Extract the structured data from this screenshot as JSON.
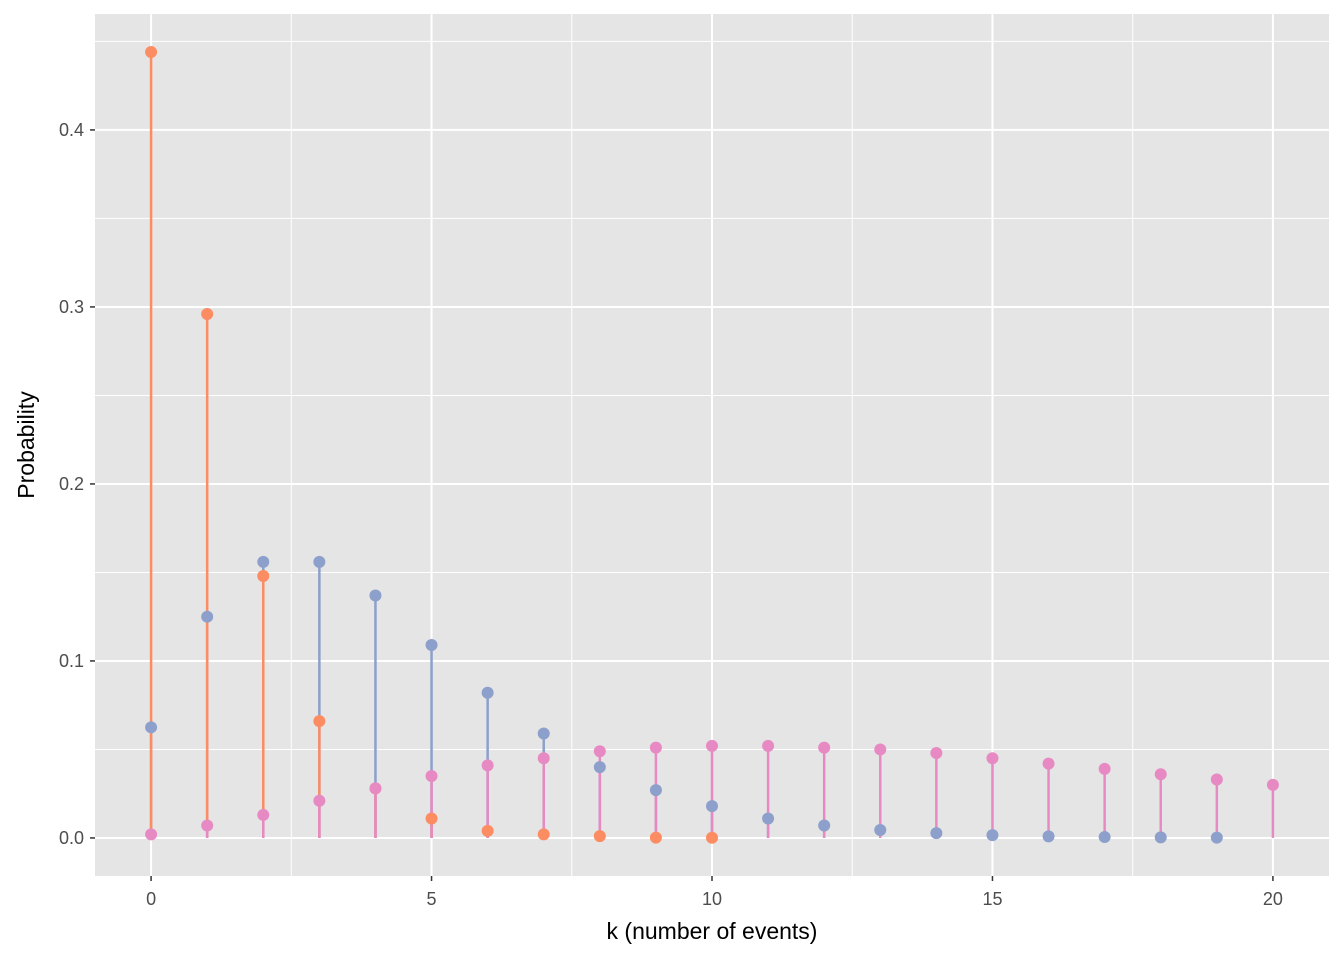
{
  "chart_data": {
    "type": "lollipop",
    "xlabel": "k (number of events)",
    "ylabel": "Probability",
    "xlim": [
      -1,
      21
    ],
    "ylim": [
      -0.0215,
      0.4655
    ],
    "x_ticks": [
      0,
      5,
      10,
      15,
      20
    ],
    "x_tick_labels": [
      "0",
      "5",
      "10",
      "15",
      "20"
    ],
    "y_ticks": [
      0.0,
      0.1,
      0.2,
      0.3,
      0.4
    ],
    "y_tick_labels": [
      "0.0",
      "0.1",
      "0.2",
      "0.3",
      "0.4"
    ],
    "x_minor_ticks": [
      2.5,
      7.5,
      12.5,
      17.5
    ],
    "y_minor_ticks": [
      0.05,
      0.15,
      0.25,
      0.35,
      0.45
    ],
    "grid": true,
    "background_color": "#E5E5E5",
    "grid_color": "#FFFFFF",
    "series": [
      {
        "color": "#FC8D62",
        "x": [
          0,
          1,
          2,
          3,
          4,
          5,
          6,
          7,
          8,
          9,
          10
        ],
        "values": [
          0.444,
          0.296,
          0.148,
          0.066,
          0.028,
          0.011,
          0.004,
          0.002,
          0.001,
          0.0002,
          0.0001
        ]
      },
      {
        "color": "#8DA0CB",
        "x": [
          0,
          1,
          2,
          3,
          4,
          5,
          6,
          7,
          8,
          9,
          10,
          11,
          12,
          13,
          14,
          15,
          16,
          17,
          18,
          19
        ],
        "values": [
          0.0625,
          0.125,
          0.156,
          0.156,
          0.137,
          0.109,
          0.082,
          0.059,
          0.04,
          0.027,
          0.018,
          0.011,
          0.007,
          0.0045,
          0.0027,
          0.0016,
          0.0009,
          0.0005,
          0.0003,
          0.0002
        ]
      },
      {
        "color": "#E78AC3",
        "x": [
          0,
          1,
          2,
          3,
          4,
          5,
          6,
          7,
          8,
          9,
          10,
          11,
          12,
          13,
          14,
          15,
          16,
          17,
          18,
          19,
          20
        ],
        "values": [
          0.002,
          0.007,
          0.013,
          0.021,
          0.028,
          0.035,
          0.041,
          0.045,
          0.049,
          0.051,
          0.052,
          0.052,
          0.051,
          0.05,
          0.048,
          0.045,
          0.042,
          0.039,
          0.036,
          0.033,
          0.03
        ]
      }
    ]
  }
}
